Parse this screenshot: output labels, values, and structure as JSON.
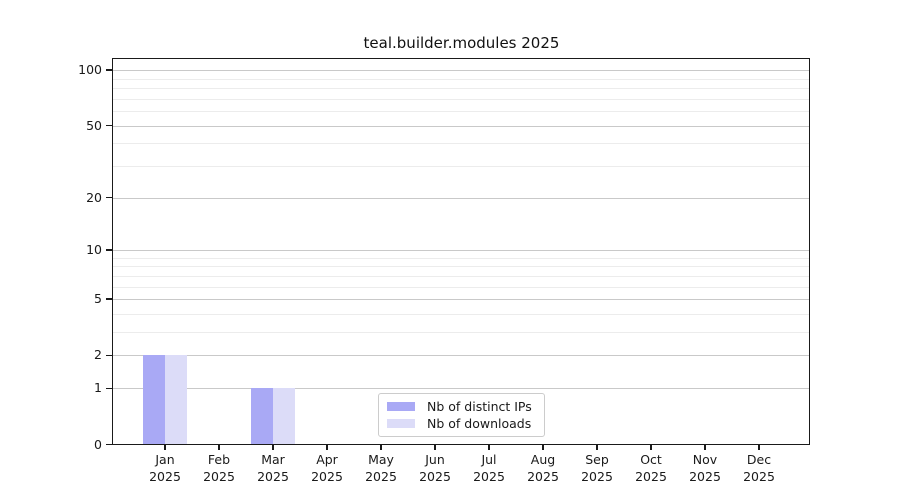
{
  "title": "teal.builder.modules 2025",
  "chart_data": {
    "type": "bar",
    "title": "teal.builder.modules 2025",
    "categories": [
      "Jan 2025",
      "Feb 2025",
      "Mar 2025",
      "Apr 2025",
      "May 2025",
      "Jun 2025",
      "Jul 2025",
      "Aug 2025",
      "Sep 2025",
      "Oct 2025",
      "Nov 2025",
      "Dec 2025"
    ],
    "x_tick_labels": [
      [
        "Jan",
        "2025"
      ],
      [
        "Feb",
        "2025"
      ],
      [
        "Mar",
        "2025"
      ],
      [
        "Apr",
        "2025"
      ],
      [
        "May",
        "2025"
      ],
      [
        "Jun",
        "2025"
      ],
      [
        "Jul",
        "2025"
      ],
      [
        "Aug",
        "2025"
      ],
      [
        "Sep",
        "2025"
      ],
      [
        "Oct",
        "2025"
      ],
      [
        "Nov",
        "2025"
      ],
      [
        "Dec",
        "2025"
      ]
    ],
    "series": [
      {
        "name": "Nb of distinct IPs",
        "color": "#a9a9f5",
        "values": [
          2,
          0,
          1,
          0,
          0,
          0,
          0,
          0,
          0,
          0,
          0,
          0
        ]
      },
      {
        "name": "Nb of downloads",
        "color": "#dcdcf8",
        "values": [
          2,
          0,
          1,
          0,
          0,
          0,
          0,
          0,
          0,
          0,
          0,
          0
        ]
      }
    ],
    "xlabel": "",
    "ylabel": "",
    "yscale": "log1p",
    "ylim": [
      0,
      115
    ],
    "y_major_ticks": [
      0,
      1,
      2,
      5,
      10,
      20,
      50,
      100
    ],
    "y_minor_gridlines": [
      3,
      4,
      6,
      7,
      8,
      9,
      30,
      40,
      60,
      70,
      80,
      90
    ],
    "grid": "horizontal",
    "legend_position": "lower center inside"
  },
  "colors": {
    "series_dark": "#a9a9f5",
    "series_light": "#dcdcf8",
    "grid_major": "#c9c9c9",
    "grid_minor": "#ececec",
    "spine": "#1a1a1a",
    "background": "#ffffff"
  }
}
